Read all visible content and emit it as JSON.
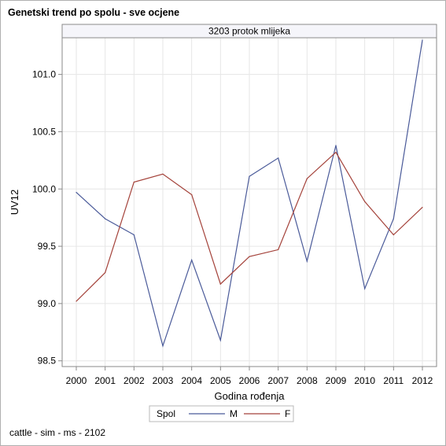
{
  "title": "Genetski trend po spolu - sve ocjene",
  "footnote": "cattle - sim - ms - 2102",
  "colors": {
    "M": "#4a5a99",
    "F": "#a4423a",
    "grid": "#e6e6e6",
    "axis": "#8a8a8a",
    "panel_header_bg": "#f5f5fa"
  },
  "chart_data": {
    "type": "line",
    "panel_label": "3203 protok mlijeka",
    "xlabel": "Godina rođenja",
    "ylabel": "UV12",
    "x": [
      "2000",
      "2001",
      "2002",
      "2003",
      "2004",
      "2005",
      "2006",
      "2007",
      "2008",
      "2009",
      "2010",
      "2011",
      "2012"
    ],
    "ylim": [
      98.45,
      101.32
    ],
    "yticks": [
      98.5,
      99.0,
      99.5,
      100.0,
      100.5,
      101.0
    ],
    "ytick_labels": [
      "98.5",
      "99.0",
      "99.5",
      "100.0",
      "100.5",
      "101.0"
    ],
    "grid": true,
    "legend_position": "bottom-center",
    "legend_title": "Spol",
    "series": [
      {
        "name": "M",
        "values": [
          99.97,
          99.74,
          99.6,
          98.63,
          99.38,
          98.68,
          100.11,
          100.27,
          99.37,
          100.38,
          99.13,
          99.74,
          101.3
        ]
      },
      {
        "name": "F",
        "values": [
          99.02,
          99.27,
          100.06,
          100.13,
          99.95,
          99.17,
          99.41,
          99.47,
          100.09,
          100.32,
          99.89,
          99.6,
          99.84
        ]
      }
    ]
  }
}
